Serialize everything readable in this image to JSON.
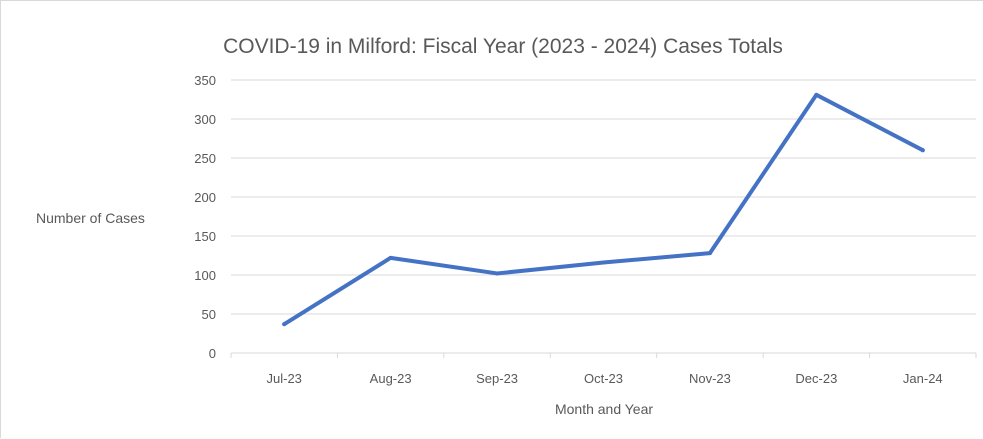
{
  "chart_data": {
    "type": "line",
    "title": "COVID-19 in Milford: Fiscal Year (2023 - 2024) Cases Totals",
    "xlabel": "Month and Year",
    "ylabel": "Number of Cases",
    "categories": [
      "Jul-23",
      "Aug-23",
      "Sep-23",
      "Oct-23",
      "Nov-23",
      "Dec-23",
      "Jan-24"
    ],
    "series": [
      {
        "values": [
          37,
          122,
          102,
          116,
          128,
          331,
          260
        ],
        "color": "#4472c4"
      }
    ],
    "ylim": [
      0,
      350
    ],
    "yticks": [
      0,
      50,
      100,
      150,
      200,
      250,
      300,
      350
    ],
    "grid": true,
    "legend": "none"
  }
}
